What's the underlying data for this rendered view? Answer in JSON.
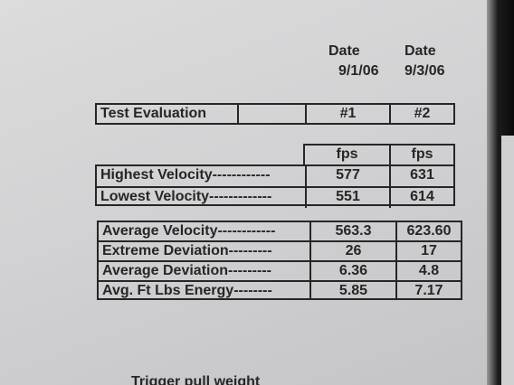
{
  "header": {
    "date_labels": [
      "Date",
      "Date"
    ],
    "dates": [
      "9/1/06",
      "9/3/06"
    ]
  },
  "title_table": {
    "title": "Test Evaluation",
    "columns": [
      "#1",
      "#2"
    ]
  },
  "velocity_table": {
    "units": [
      "fps",
      "fps"
    ],
    "rows": [
      [
        "Highest Velocity------------",
        "577",
        "631"
      ],
      [
        "Lowest Velocity-------------",
        "551",
        "614"
      ]
    ]
  },
  "stats_table": {
    "rows": [
      [
        "Average Velocity------------",
        "563.3",
        "623.60"
      ],
      [
        "Extreme Deviation---------",
        "26",
        "17"
      ],
      [
        "Average Deviation---------",
        "6.36",
        "4.8"
      ],
      [
        "Avg. Ft Lbs Energy--------",
        "5.85",
        "7.17"
      ]
    ]
  },
  "footer": {
    "text": "Trigger pull weight"
  }
}
